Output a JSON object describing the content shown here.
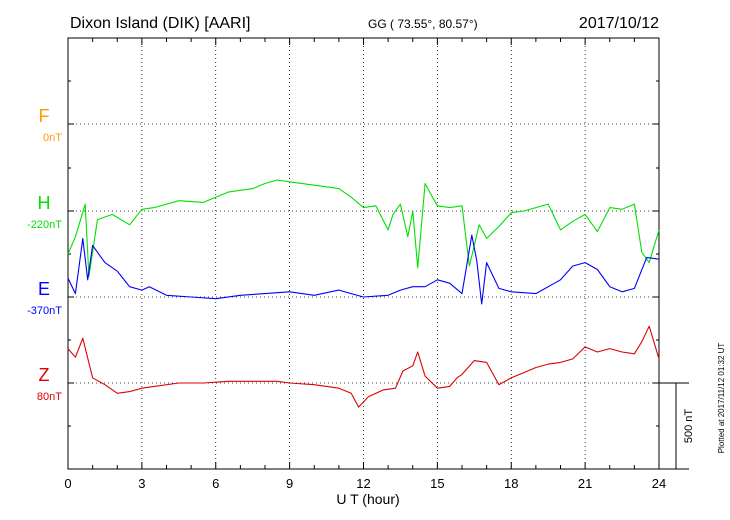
{
  "header": {
    "station": "Dixon Island (DIK)  [AARI]",
    "coords": "GG ( 73.55°,  80.57°)",
    "date": "2017/10/12"
  },
  "footer": {
    "plotted": "Plotted at 2017/11/12 01:32 UT",
    "scale_label": "500 nT"
  },
  "chart_data": {
    "type": "line",
    "xlabel": "U T (hour)",
    "xlim": [
      0,
      24
    ],
    "x_ticks": [
      "0",
      "3",
      "6",
      "9",
      "12",
      "15",
      "18",
      "21",
      "24"
    ],
    "grid": true,
    "scale_nt": 500,
    "series": [
      {
        "name": "F",
        "baseline_label": "0nT",
        "color": "#ff9900",
        "x": [],
        "y": []
      },
      {
        "name": "H",
        "baseline_label": "-220nT",
        "color": "#00e000",
        "x": [
          0,
          0.3,
          0.7,
          0.85,
          1.2,
          1.8,
          2.5,
          3.0,
          3.5,
          4.5,
          5.5,
          6.5,
          7.5,
          8.0,
          8.5,
          9.0,
          10.0,
          11.0,
          11.5,
          12.0,
          12.5,
          13.0,
          13.2,
          13.5,
          13.8,
          14.0,
          14.2,
          14.5,
          14.8,
          15.0,
          15.5,
          16.0,
          16.3,
          16.5,
          16.7,
          17.0,
          17.5,
          18.0,
          18.5,
          19.0,
          19.5,
          20.0,
          20.5,
          21.0,
          21.5,
          22.0,
          22.5,
          23.0,
          23.3,
          23.6,
          24.0
        ],
        "y": [
          -250,
          -150,
          40,
          -380,
          -50,
          -20,
          -80,
          10,
          20,
          60,
          50,
          110,
          130,
          160,
          180,
          170,
          150,
          130,
          80,
          20,
          30,
          -110,
          -20,
          40,
          -150,
          0,
          -330,
          160,
          80,
          30,
          20,
          30,
          -320,
          -200,
          -80,
          -160,
          -90,
          -10,
          0,
          20,
          40,
          -110,
          -60,
          -20,
          -120,
          20,
          10,
          40,
          -240,
          -300,
          -110
        ]
      },
      {
        "name": "E",
        "baseline_label": "-370nT",
        "color": "#0000ff",
        "x": [
          0,
          0.3,
          0.6,
          0.8,
          1.0,
          1.5,
          2.0,
          2.5,
          3.0,
          3.3,
          4.0,
          5.0,
          6.0,
          7.0,
          8.0,
          9.0,
          10.0,
          11.0,
          11.5,
          12.0,
          13.0,
          13.5,
          14.0,
          14.5,
          15.0,
          15.5,
          16.0,
          16.4,
          16.6,
          16.8,
          17.0,
          17.5,
          18.0,
          19.0,
          20.0,
          20.5,
          21.0,
          21.5,
          22.0,
          22.5,
          23.0,
          23.5,
          24.0
        ],
        "y": [
          110,
          20,
          340,
          100,
          300,
          200,
          150,
          60,
          40,
          60,
          10,
          0,
          -10,
          10,
          20,
          30,
          10,
          40,
          20,
          0,
          10,
          40,
          60,
          60,
          100,
          80,
          20,
          360,
          210,
          -40,
          200,
          50,
          30,
          20,
          100,
          180,
          200,
          160,
          60,
          30,
          50,
          230,
          220
        ]
      },
      {
        "name": "Z",
        "baseline_label": "80nT",
        "color": "#dd0000",
        "x": [
          0,
          0.3,
          0.6,
          1.0,
          1.5,
          2.0,
          2.5,
          3.0,
          3.5,
          4.5,
          5.5,
          6.5,
          7.5,
          8.5,
          9.0,
          10.0,
          11.0,
          11.5,
          11.8,
          12.2,
          12.8,
          13.3,
          13.6,
          14.0,
          14.2,
          14.5,
          15.0,
          15.5,
          15.8,
          16.0,
          16.5,
          17.0,
          17.5,
          18.0,
          18.5,
          19.0,
          19.5,
          20.0,
          20.5,
          21.0,
          21.5,
          22.0,
          22.5,
          23.0,
          23.3,
          23.6,
          24.0
        ],
        "y": [
          200,
          150,
          260,
          30,
          -10,
          -60,
          -50,
          -30,
          -20,
          0,
          0,
          10,
          10,
          10,
          0,
          -10,
          -30,
          -60,
          -140,
          -80,
          -40,
          -30,
          70,
          100,
          180,
          40,
          -30,
          -20,
          30,
          50,
          130,
          120,
          -10,
          30,
          60,
          90,
          110,
          120,
          140,
          210,
          180,
          200,
          180,
          170,
          240,
          330,
          140
        ]
      }
    ]
  }
}
